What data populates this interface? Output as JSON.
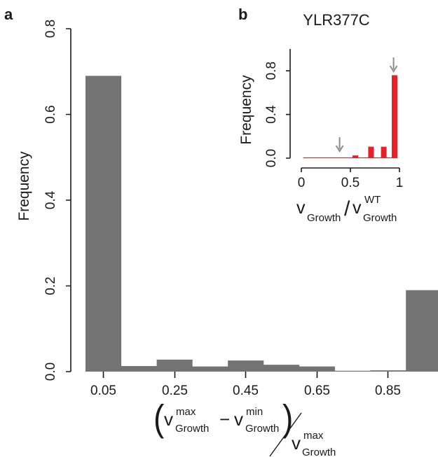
{
  "chart_data": [
    {
      "panel_label": "a",
      "type": "bar",
      "title": "",
      "categories": [
        "0.05",
        "",
        "0.25",
        "",
        "0.45",
        "",
        "0.65",
        "",
        "0.85",
        ""
      ],
      "x_tick_labels": [
        "0.05",
        "0.25",
        "0.45",
        "0.65",
        "0.85"
      ],
      "values": [
        0.69,
        0.013,
        0.028,
        0.012,
        0.026,
        0.016,
        0.012,
        0.002,
        0.003,
        0.19
      ],
      "ylabel": "Frequency",
      "xlabel_parts": {
        "open_paren": "(",
        "v1": "v",
        "v1_sup": "max",
        "v1_sub": "Growth",
        "minus": "−",
        "v2": "v",
        "v2_sup": "min",
        "v2_sub": "Growth",
        "close_paren": ")",
        "v3": "v",
        "v3_sup": "max",
        "v3_sub": "Growth"
      },
      "y_ticks": [
        "0.0",
        "0.2",
        "0.4",
        "0.6",
        "0.8"
      ],
      "ylim": [
        0,
        0.8
      ],
      "bar_color": "#737373",
      "grid": false
    },
    {
      "panel_label": "b",
      "type": "bar",
      "title": "YLR377C",
      "x": [
        0.55,
        0.71,
        0.84,
        0.95
      ],
      "values": [
        0.025,
        0.105,
        0.105,
        0.76
      ],
      "xlim": [
        0,
        1
      ],
      "x_ticks": [
        "0",
        "0.5",
        "1"
      ],
      "y_ticks": [
        "0.0",
        "0.4",
        "0.8"
      ],
      "ylim": [
        0,
        1.0
      ],
      "ylabel": "Frequency",
      "xlabel_parts": {
        "v1": "v",
        "v1_sub": "Growth",
        "slash": "/",
        "v2": "v",
        "v2_sup": "WT",
        "v2_sub": "Growth"
      },
      "arrows_at": [
        0.39,
        0.94
      ],
      "bar_color": "#e8202a",
      "arrow_color": "#8c8c8c",
      "grid": false
    }
  ]
}
